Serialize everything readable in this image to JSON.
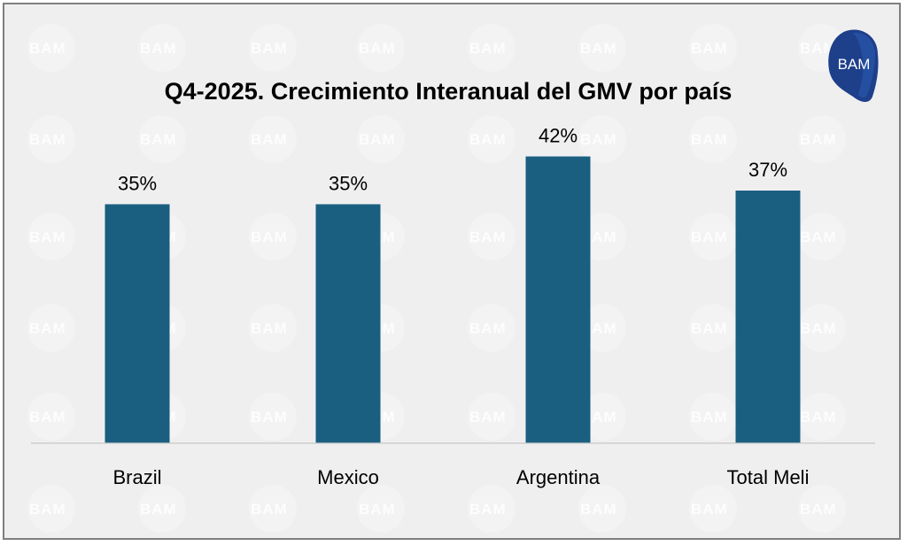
{
  "brand": {
    "logo_text": "BAM",
    "watermark_text": "BAM"
  },
  "colors": {
    "bar": "#1a5e80",
    "background": "#efeff0",
    "logo": "#1e3f8a"
  },
  "chart_data": {
    "type": "bar",
    "title": "Q4-2025. Crecimiento Interanual del GMV por país",
    "categories": [
      "Brazil",
      "Mexico",
      "Argentina",
      "Total Meli"
    ],
    "values": [
      35,
      35,
      42,
      37
    ],
    "value_labels": [
      "35%",
      "35%",
      "42%",
      "37%"
    ],
    "xlabel": "",
    "ylabel": "",
    "ylim": [
      0,
      47
    ],
    "grid": false,
    "legend": "none"
  }
}
